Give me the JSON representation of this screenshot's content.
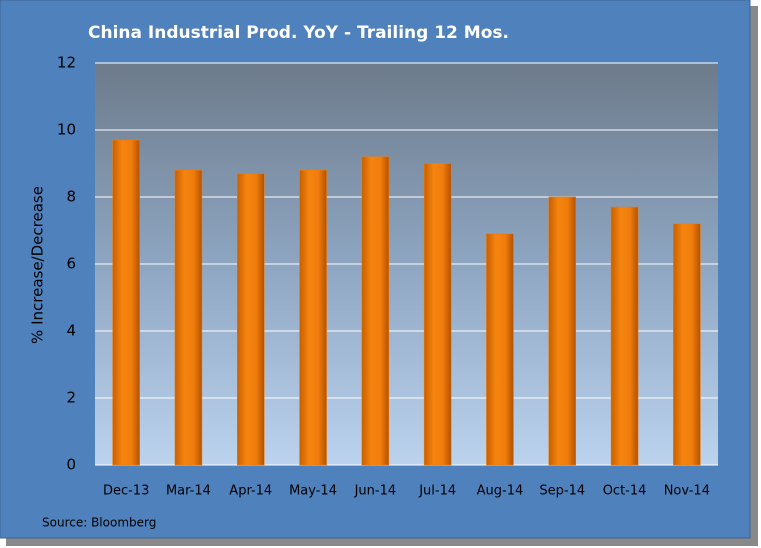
{
  "chart_data": {
    "type": "bar",
    "title": "China Industrial Prod. YoY - Trailing 12 Mos.",
    "y_label": "% Increase/Decrease",
    "source": "Source: Bloomberg",
    "categories": [
      "Dec-13",
      "Mar-14",
      "Apr-14",
      "May-14",
      "Jun-14",
      "Jul-14",
      "Aug-14",
      "Sep-14",
      "Oct-14",
      "Nov-14"
    ],
    "values": [
      9.7,
      8.8,
      8.7,
      8.8,
      9.2,
      9.0,
      6.9,
      8.0,
      7.7,
      7.2
    ],
    "color": "#f07c0c",
    "ylim": [
      0,
      12
    ],
    "yticks": [
      0,
      2,
      4,
      6,
      8,
      10,
      12
    ],
    "grid": true
  }
}
